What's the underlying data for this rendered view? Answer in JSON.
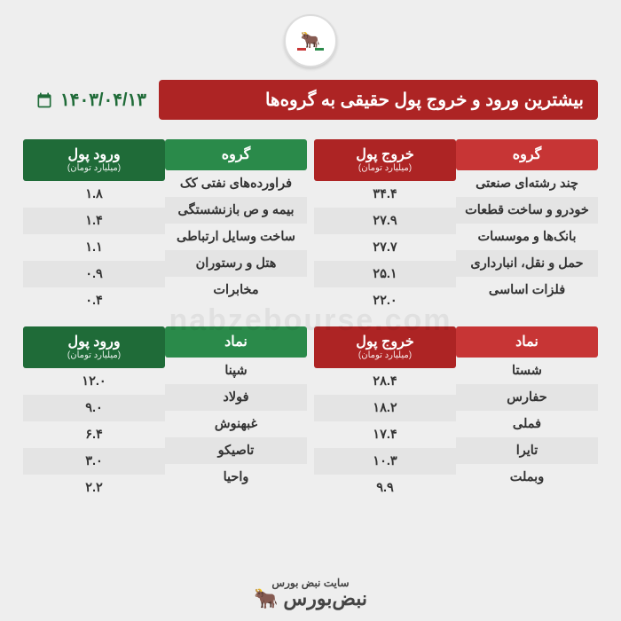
{
  "meta": {
    "title_banner": "بیشترین ورود و خروج پول حقیقی به گروه‌ها",
    "date": "۱۴۰۳/۰۴/۱۳",
    "watermark": "nabzebourse.com",
    "site_label": "سایت نبض بورس",
    "brand_label": "نبض‌بورس"
  },
  "colors": {
    "bg": "#eeeeee",
    "header_bg": "#ad2424",
    "group_red": "#c73535",
    "value_red": "#ad2424",
    "group_green": "#2a8a4a",
    "value_green": "#1f6b38",
    "row": "#eeeeee",
    "row_alt": "#e4e4e4"
  },
  "red_panel": {
    "section1": {
      "group_header": "گروه",
      "value_header": "خروج پول",
      "value_sub": "(میلیارد تومان)",
      "rows": [
        {
          "group": "چند رشته‌ای صنعتی",
          "value": "۳۴.۴"
        },
        {
          "group": "خودرو و ساخت قطعات",
          "value": "۲۷.۹"
        },
        {
          "group": "بانک‌ها و موسسات",
          "value": "۲۷.۷"
        },
        {
          "group": "حمل و نقل، انبارداری",
          "value": "۲۵.۱"
        },
        {
          "group": "فلزات اساسی",
          "value": "۲۲.۰"
        }
      ]
    },
    "section2": {
      "group_header": "نماد",
      "value_header": "خروج پول",
      "value_sub": "(میلیارد تومان)",
      "rows": [
        {
          "group": "شستا",
          "value": "۲۸.۴"
        },
        {
          "group": "حفارس",
          "value": "۱۸.۲"
        },
        {
          "group": "فملی",
          "value": "۱۷.۴"
        },
        {
          "group": "تایرا",
          "value": "۱۰.۳"
        },
        {
          "group": "وبملت",
          "value": "۹.۹"
        }
      ]
    }
  },
  "green_panel": {
    "section1": {
      "group_header": "گروه",
      "value_header": "ورود پول",
      "value_sub": "(میلیارد تومان)",
      "rows": [
        {
          "group": "فراورده‌های نفتی کک",
          "value": "۱.۸"
        },
        {
          "group": "بیمه و ص بازنشستگی",
          "value": "۱.۴"
        },
        {
          "group": "ساخت وسایل ارتباطی",
          "value": "۱.۱"
        },
        {
          "group": "هتل و رستوران",
          "value": "۰.۹"
        },
        {
          "group": "مخابرات",
          "value": "۰.۴"
        }
      ]
    },
    "section2": {
      "group_header": "نماد",
      "value_header": "ورود پول",
      "value_sub": "(میلیارد تومان)",
      "rows": [
        {
          "group": "شپنا",
          "value": "۱۲.۰"
        },
        {
          "group": "فولاد",
          "value": "۹.۰"
        },
        {
          "group": "غبهنوش",
          "value": "۶.۴"
        },
        {
          "group": "تاصیکو",
          "value": "۳.۰"
        },
        {
          "group": "واحیا",
          "value": "۲.۲"
        }
      ]
    }
  }
}
